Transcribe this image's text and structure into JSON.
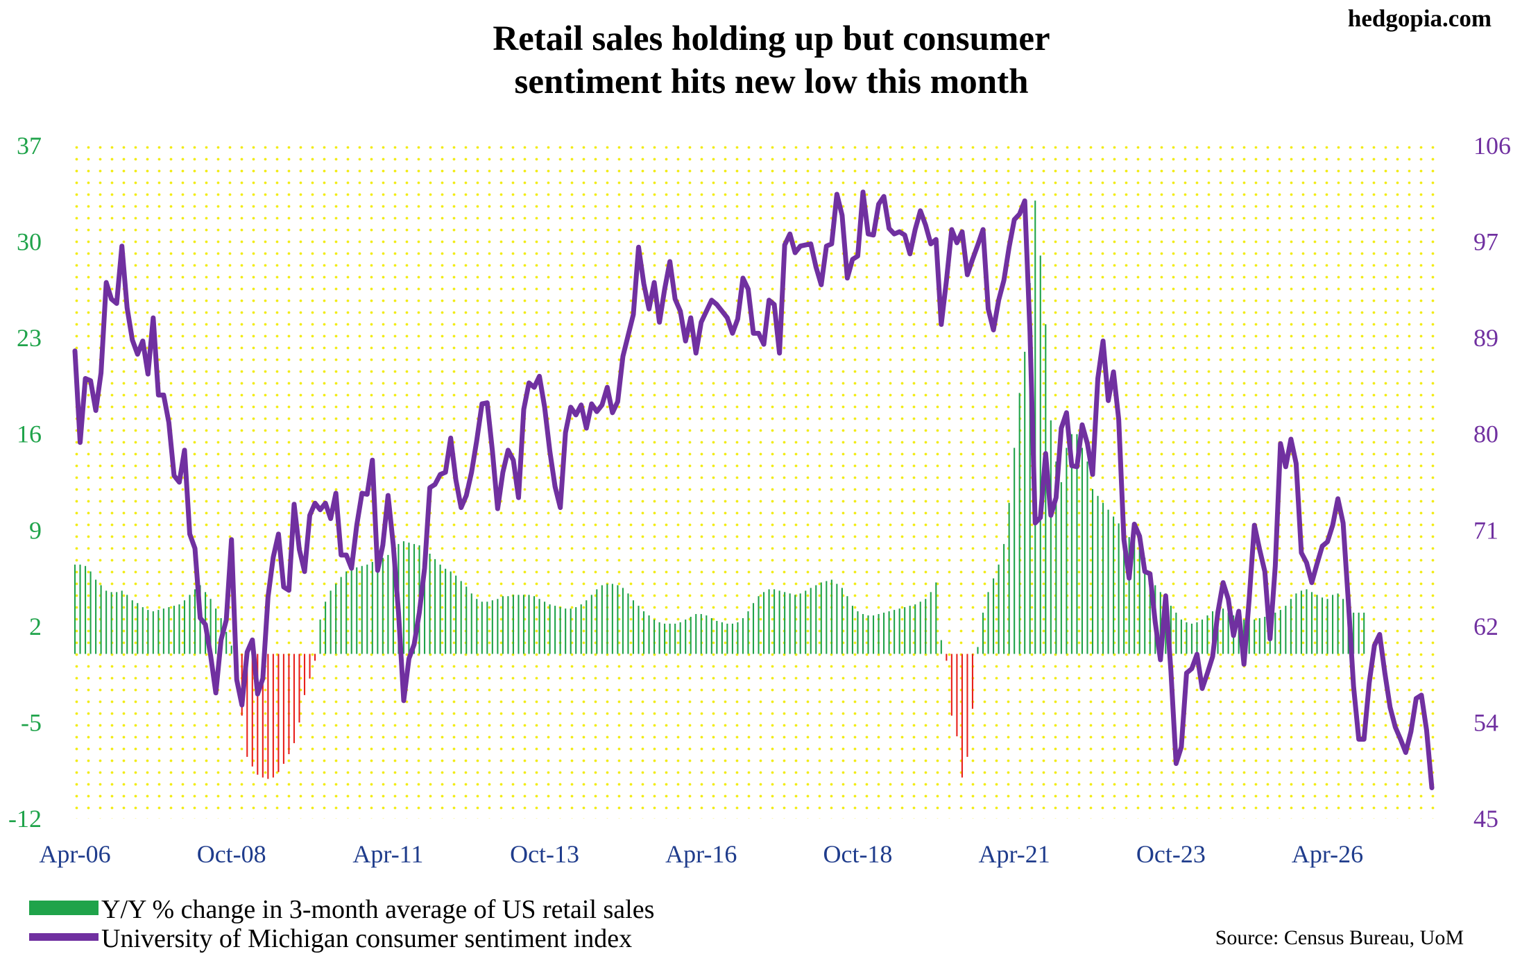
{
  "brand": "hedgopia.com",
  "chart_data": {
    "type": "bar+line",
    "title": [
      "Retail sales holding up but consumer",
      "sentiment hits new low this month"
    ],
    "x_ticks": [
      "Apr-06",
      "Oct-08",
      "Apr-11",
      "Oct-13",
      "Apr-16",
      "Oct-18",
      "Apr-21",
      "Oct-23",
      "Apr-26"
    ],
    "x_tick_index": [
      0,
      30,
      60,
      90,
      120,
      150,
      180,
      210,
      240
    ],
    "y_left": {
      "ticks": [
        "37",
        "30",
        "23",
        "16",
        "9",
        "2",
        "-5",
        "-12"
      ],
      "range": [
        -12,
        37
      ]
    },
    "y_right": {
      "ticks": [
        "106",
        "97",
        "89",
        "80",
        "71",
        "62",
        "54",
        "45"
      ],
      "range": [
        45,
        106
      ]
    },
    "grid": "dotted yellow",
    "legend_position": "bottom-left",
    "series": [
      {
        "name": "Y/Y % change in 3-month average of US retail sales",
        "axis": "left",
        "type": "bar",
        "color_positive": "#1fa34a",
        "color_negative": "#e8201c",
        "start": "Apr-06",
        "frequency": "monthly",
        "values": [
          6.5,
          6.5,
          6.4,
          6.0,
          5.4,
          5.0,
          4.6,
          4.5,
          4.5,
          4.6,
          4.3,
          3.9,
          3.7,
          3.4,
          3.2,
          3.1,
          3.2,
          3.3,
          3.4,
          3.5,
          3.6,
          3.9,
          4.3,
          4.7,
          5.0,
          4.5,
          4.0,
          3.3,
          2.6,
          1.6,
          0.6,
          -1.2,
          -4.5,
          -7.5,
          -8.2,
          -8.8,
          -9.0,
          -9.1,
          -9.0,
          -8.6,
          -8.0,
          -7.3,
          -6.5,
          -5.0,
          -3.0,
          -1.8,
          -0.5,
          2.5,
          3.8,
          4.6,
          5.1,
          5.6,
          6.0,
          6.2,
          6.3,
          6.4,
          6.5,
          6.7,
          6.8,
          7.0,
          7.2,
          7.6,
          8.0,
          8.2,
          8.1,
          8.0,
          7.9,
          7.7,
          7.3,
          6.9,
          6.5,
          6.2,
          6.0,
          5.7,
          5.3,
          4.9,
          4.4,
          4.0,
          3.8,
          3.8,
          3.9,
          4.0,
          4.2,
          4.2,
          4.3,
          4.3,
          4.3,
          4.3,
          4.2,
          4.0,
          3.8,
          3.6,
          3.5,
          3.4,
          3.3,
          3.3,
          3.4,
          3.6,
          3.9,
          4.3,
          4.7,
          5.0,
          5.1,
          5.1,
          5.0,
          4.8,
          4.4,
          3.9,
          3.5,
          3.1,
          2.8,
          2.5,
          2.3,
          2.2,
          2.2,
          2.2,
          2.3,
          2.5,
          2.7,
          2.9,
          2.9,
          2.8,
          2.6,
          2.4,
          2.3,
          2.2,
          2.2,
          2.3,
          2.6,
          3.1,
          3.7,
          4.2,
          4.5,
          4.7,
          4.7,
          4.6,
          4.5,
          4.4,
          4.3,
          4.4,
          4.6,
          4.8,
          5.0,
          5.2,
          5.3,
          5.4,
          5.1,
          4.8,
          4.2,
          3.5,
          3.1,
          2.9,
          2.8,
          2.8,
          2.9,
          3.0,
          3.1,
          3.2,
          3.3,
          3.4,
          3.5,
          3.6,
          3.8,
          4.0,
          4.5,
          5.2,
          1.0,
          -0.5,
          -4.5,
          -6.0,
          -9.0,
          -7.5,
          -4.0,
          0.5,
          3.0,
          4.5,
          5.5,
          6.5,
          8.0,
          11.0,
          15.0,
          19.0,
          22.0,
          27.0,
          33.0,
          29.0,
          24.0,
          17.0,
          14.0,
          12.5,
          15.0,
          16.0,
          16.0,
          15.0,
          14.0,
          12.0,
          11.5,
          11.0,
          10.5,
          10.0,
          9.5,
          9.0,
          8.5,
          8.3,
          8.0,
          7.0,
          6.0,
          5.0,
          4.5,
          4.0,
          3.5,
          3.0,
          2.5,
          2.3,
          2.2,
          2.3,
          2.5,
          2.8,
          3.1,
          3.3,
          3.3,
          3.0,
          2.8,
          2.6,
          2.5,
          2.5,
          2.5,
          2.6,
          2.7,
          2.8,
          3.0,
          3.2,
          3.5,
          4.0,
          4.4,
          4.6,
          4.7,
          4.5,
          4.3,
          4.1,
          4.0,
          4.3,
          4.4,
          4.0,
          3.5,
          3.0,
          3.0,
          3.0
        ]
      },
      {
        "name": "University of Michigan consumer sentiment index",
        "axis": "right",
        "type": "line",
        "color": "#7030a0",
        "start": "Apr-06",
        "frequency": "monthly",
        "values": [
          87.4,
          79.1,
          84.9,
          84.7,
          82.0,
          85.4,
          93.6,
          92.1,
          91.7,
          96.9,
          91.3,
          88.4,
          87.1,
          88.3,
          85.3,
          90.4,
          83.4,
          83.4,
          80.9,
          76.1,
          75.5,
          78.4,
          70.8,
          69.5,
          63.2,
          62.6,
          59.8,
          56.4,
          61.2,
          63.0,
          70.3,
          57.6,
          55.3,
          60.1,
          61.2,
          56.3,
          57.7,
          65.1,
          68.7,
          70.8,
          66.0,
          65.7,
          73.5,
          69.4,
          67.4,
          72.5,
          73.6,
          73.0,
          73.6,
          72.2,
          74.5,
          68.9,
          68.9,
          67.7,
          71.6,
          74.5,
          74.4,
          77.5,
          67.5,
          69.8,
          74.3,
          69.8,
          63.7,
          55.7,
          59.5,
          60.8,
          63.7,
          67.7,
          75.0,
          75.3,
          76.2,
          76.4,
          79.5,
          75.7,
          73.2,
          74.3,
          76.4,
          79.3,
          82.6,
          82.7,
          78.3,
          73.1,
          76.4,
          78.4,
          77.5,
          74.1,
          82.1,
          84.5,
          84.1,
          85.1,
          82.3,
          78.3,
          75.1,
          73.2,
          80.0,
          82.3,
          81.6,
          82.5,
          80.4,
          82.6,
          81.9,
          82.5,
          84.1,
          81.8,
          82.8,
          86.9,
          88.8,
          90.7,
          96.8,
          93.5,
          91.2,
          93.6,
          90.0,
          93.0,
          95.5,
          92.1,
          91.0,
          88.3,
          90.4,
          87.2,
          90.0,
          91.0,
          92.0,
          91.6,
          91.0,
          90.4,
          89.0,
          90.3,
          94.0,
          93.0,
          89.0,
          89.0,
          88.0,
          92.0,
          91.6,
          87.2,
          97.0,
          98.0,
          96.3,
          96.9,
          97.0,
          97.1,
          95.0,
          93.4,
          96.9,
          97.1,
          101.6,
          99.7,
          94.0,
          95.7,
          96.0,
          101.8,
          98.0,
          97.9,
          100.7,
          101.4,
          98.5,
          98.0,
          98.2,
          97.9,
          96.2,
          98.4,
          100.1,
          98.8,
          97.1,
          97.5,
          89.8,
          93.8,
          98.4,
          97.2,
          98.2,
          94.3,
          95.7,
          97.0,
          98.4,
          91.2,
          89.3,
          92.0,
          93.8,
          96.8,
          99.3,
          99.8,
          101.0,
          89.1,
          71.8,
          72.3,
          78.1,
          72.5,
          74.1,
          80.4,
          81.8,
          77.0,
          76.9,
          80.7,
          79.0,
          76.2,
          84.9,
          88.3,
          82.9,
          85.5,
          81.2,
          70.3,
          66.8,
          71.7,
          70.6,
          67.4,
          67.2,
          62.8,
          59.4,
          65.2,
          58.4,
          50.0,
          51.5,
          58.2,
          58.6,
          59.9,
          56.8,
          58.2,
          59.7,
          63.7,
          66.4,
          64.9,
          61.6,
          63.8,
          59.0,
          64.9,
          71.6,
          69.4,
          67.4,
          61.3,
          67.9,
          79.0,
          76.9,
          79.4,
          77.2,
          69.1,
          68.2,
          66.4,
          68.1,
          69.7,
          70.1,
          71.6,
          74.0,
          71.8,
          64.7,
          57.0,
          52.2,
          52.2,
          57.3,
          60.7,
          61.7,
          58.2,
          55.1,
          53.3,
          52.2,
          51.0,
          52.9,
          55.9,
          56.2,
          53.0,
          47.8
        ]
      }
    ]
  },
  "legend": [
    {
      "label": "Y/Y % change in 3-month average of US retail sales",
      "swatch": "#1fa34a"
    },
    {
      "label": "University of Michigan consumer sentiment index",
      "swatch": "#7030a0"
    }
  ],
  "source": "Source: Census Bureau, UoM"
}
